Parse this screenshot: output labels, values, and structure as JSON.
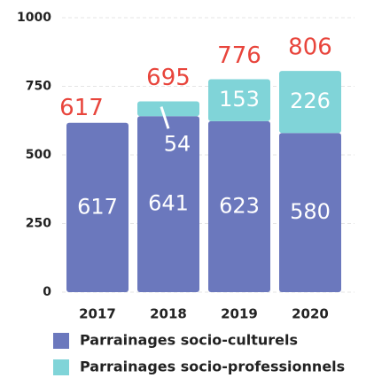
{
  "chart_data": {
    "type": "stacked_bar",
    "categories": [
      "2017",
      "2018",
      "2019",
      "2020"
    ],
    "series": [
      {
        "name": "Parrainages socio-culturels",
        "color": "#6b78bd",
        "values": [
          617,
          641,
          623,
          580
        ]
      },
      {
        "name": "Parrainages socio-professionnels",
        "color": "#80d4d8",
        "values": [
          null,
          54,
          153,
          226
        ]
      }
    ],
    "totals": [
      617,
      695,
      776,
      806
    ],
    "totals_color": "#e8453c",
    "ylim": [
      0,
      1000
    ],
    "yticks": [
      0,
      250,
      500,
      750,
      1000
    ],
    "grid": true
  }
}
